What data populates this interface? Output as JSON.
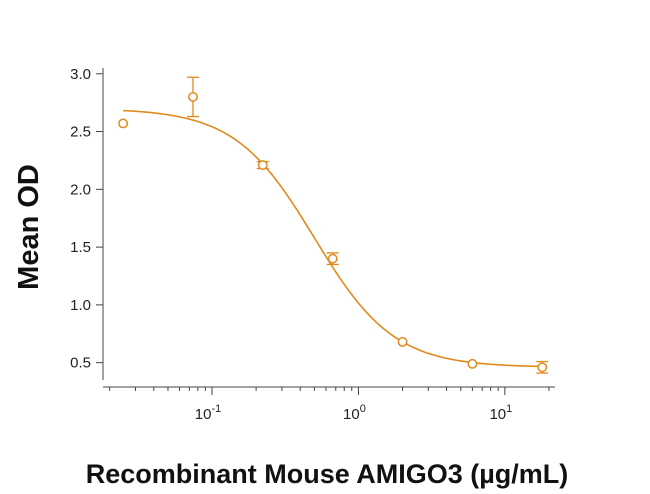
{
  "chart_data": {
    "type": "scatter",
    "xlabel": "Recombinant Mouse AMIGO3 (µg/mL)",
    "ylabel": "Mean OD",
    "xscale": "log",
    "xlim": [
      0.018,
      22
    ],
    "ylim": [
      0.35,
      3.05
    ],
    "yticks": [
      "0.5",
      "1.0",
      "1.5",
      "2.0",
      "2.5",
      "3.0"
    ],
    "xticks": [
      {
        "base": "10",
        "exp": "-1",
        "value": 0.1
      },
      {
        "base": "10",
        "exp": "0",
        "value": 1
      },
      {
        "base": "10",
        "exp": "1",
        "value": 10
      }
    ],
    "grid": false,
    "legend": "none",
    "color": "#E08A1E",
    "series": [
      {
        "x": [
          0.0247,
          0.0741,
          0.222,
          0.667,
          2.0,
          6.0,
          18.0
        ],
        "y": [
          2.57,
          2.8,
          2.21,
          1.4,
          0.68,
          0.49,
          0.46
        ],
        "error": [
          0.0,
          0.17,
          0.03,
          0.05,
          0.0,
          0.0,
          0.05
        ]
      }
    ],
    "fit": {
      "model": "4PL",
      "top": 2.7,
      "bottom": 0.46,
      "ec50": 0.5,
      "hill": 1.6
    }
  }
}
